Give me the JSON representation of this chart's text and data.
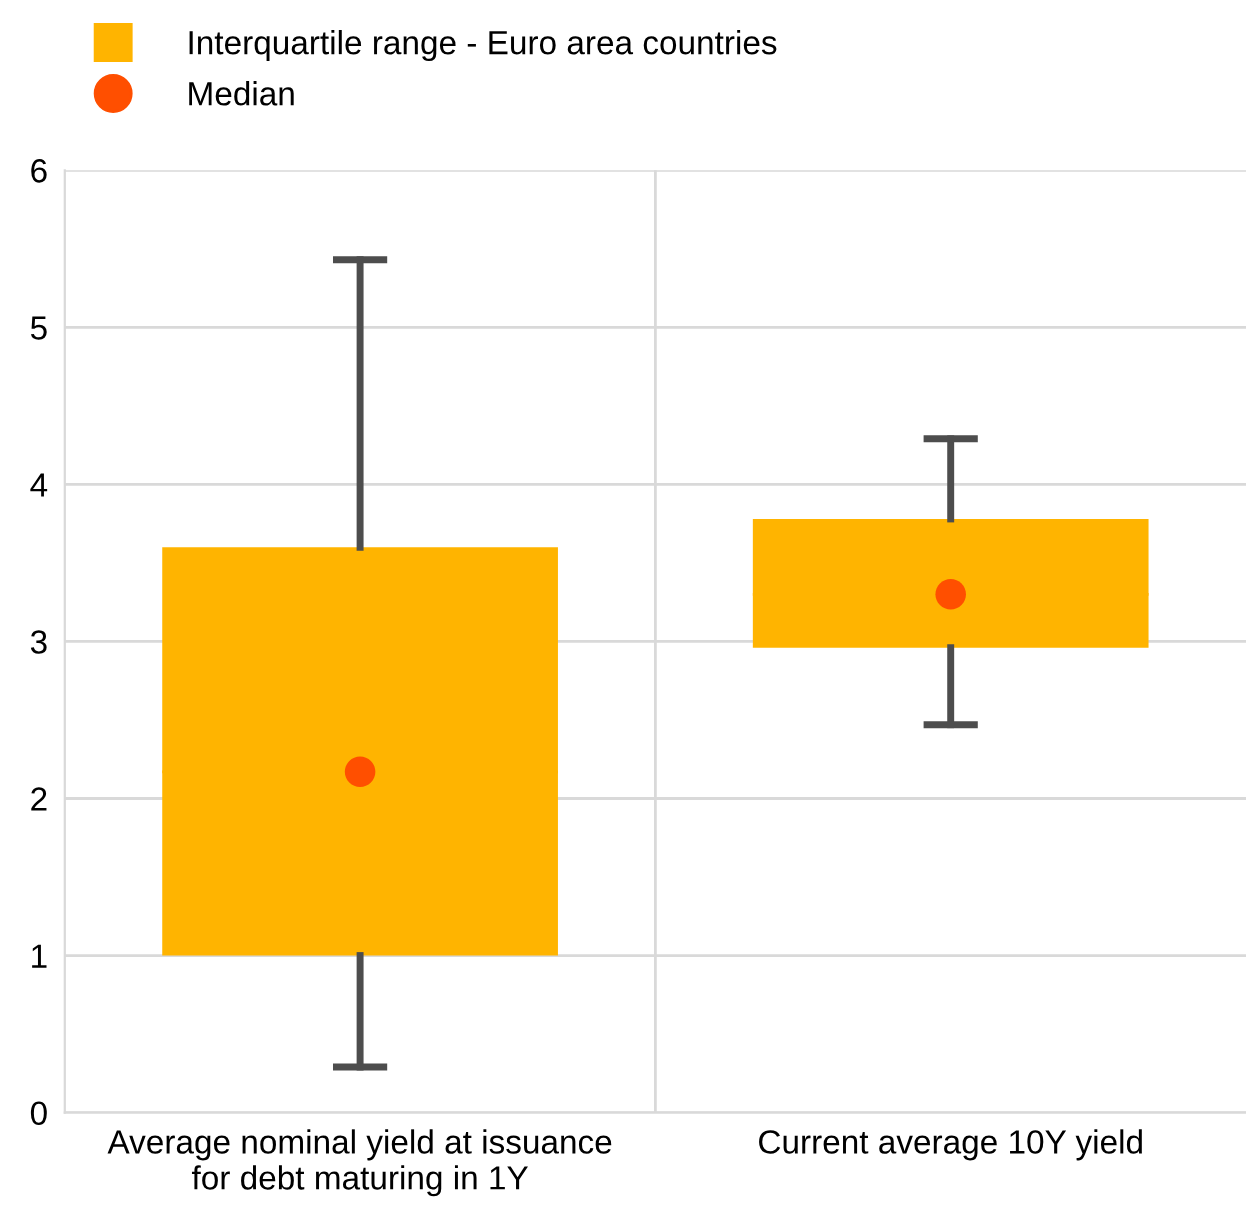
{
  "chart_data": {
    "type": "box",
    "categories": [
      "Average nominal yield at issuance\nfor debt maturing in 1Y",
      "Current average 10Y yield"
    ],
    "series": [
      {
        "name": "Interquartile range - Euro area countries",
        "color": "#ffb400",
        "boxes": [
          {
            "low": 0.29,
            "q1": 1.0,
            "median": 2.17,
            "q3": 3.6,
            "high": 5.43
          },
          {
            "low": 2.47,
            "q1": 2.96,
            "median": 3.3,
            "q3": 3.78,
            "high": 4.29
          }
        ]
      },
      {
        "name": "Median",
        "type": "scatter",
        "color": "#ff4f00",
        "marker": "circle",
        "values": [
          2.17,
          3.3
        ]
      }
    ],
    "ylim": [
      0,
      6
    ],
    "yticks": [
      0,
      1,
      2,
      3,
      4,
      5,
      6
    ],
    "grid": true,
    "legend": "top left"
  }
}
